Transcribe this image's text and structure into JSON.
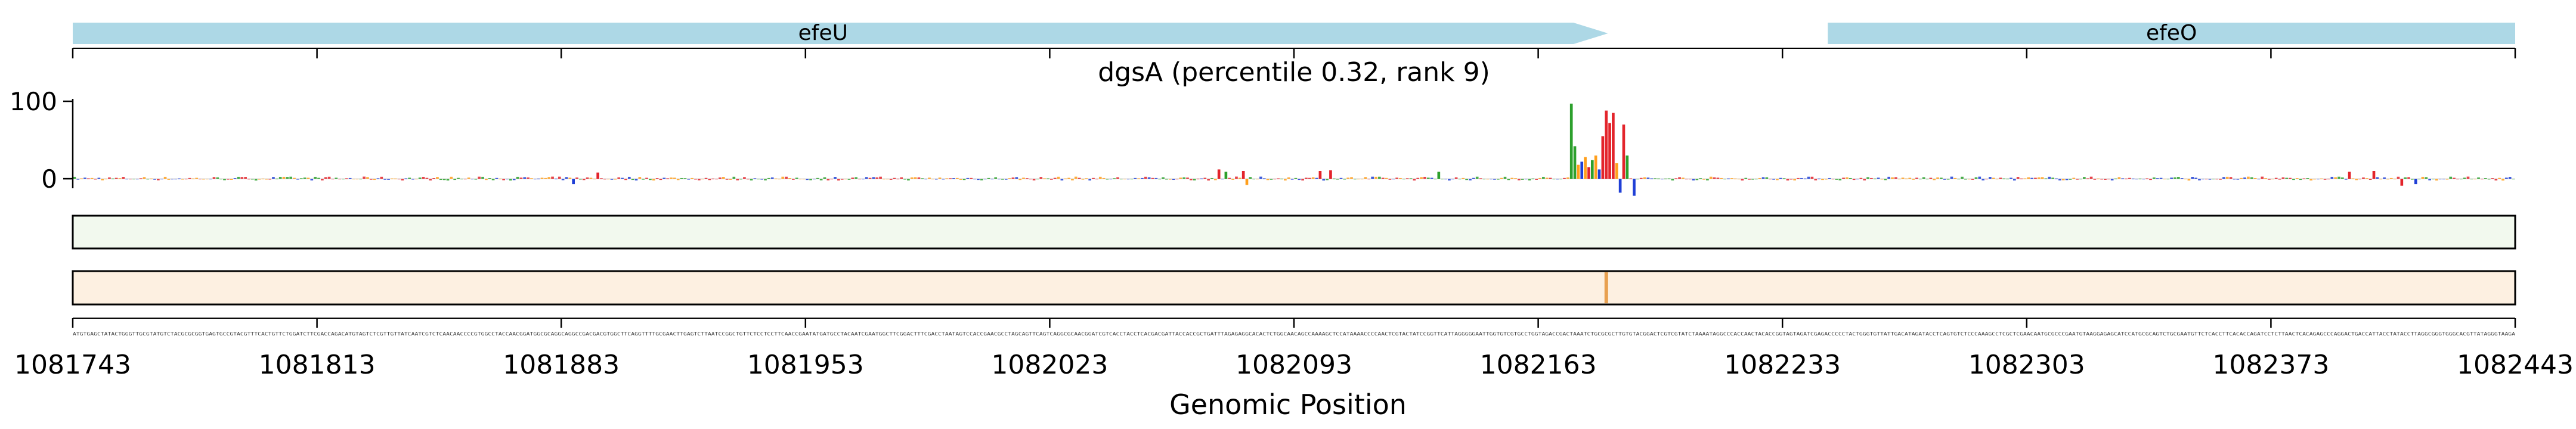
{
  "chart_data": {
    "type": "sequence-logo",
    "title": "dgsA (percentile 0.32, rank 9)",
    "xlabel": "Genomic Position",
    "ylabel": "",
    "xlim": [
      1081743,
      1082443
    ],
    "ylim": [
      -20,
      110
    ],
    "x_ticks": [
      1081743,
      1081813,
      1081883,
      1081953,
      1082023,
      1082093,
      1082163,
      1082233,
      1082303,
      1082373,
      1082443
    ],
    "y_ticks": [
      0,
      100
    ],
    "genes": [
      {
        "name": "efeU",
        "start": 1081743,
        "end": 1082183,
        "strand": "+"
      },
      {
        "name": "efeO",
        "start": 1082246,
        "end": 1082443,
        "strand": "+"
      }
    ],
    "base_colors": {
      "A": "#2ca02c",
      "C": "#1f3fd6",
      "G": "#ff9f1c",
      "T": "#e3242b"
    },
    "gene_color": "#add8e6",
    "track1_color": "#f2f9ee",
    "track2_color": "#fdf0e1",
    "track2_highlight_color": "#e8a050",
    "track2_highlight_position": 1082182,
    "logo_peaks": [
      {
        "pos": 1082172,
        "base": "A",
        "value": 97
      },
      {
        "pos": 1082173,
        "base": "A",
        "value": 42
      },
      {
        "pos": 1082174,
        "base": "G",
        "value": 18
      },
      {
        "pos": 1082175,
        "base": "C",
        "value": 22
      },
      {
        "pos": 1082176,
        "base": "G",
        "value": 28
      },
      {
        "pos": 1082177,
        "base": "T",
        "value": 15
      },
      {
        "pos": 1082178,
        "base": "A",
        "value": 24
      },
      {
        "pos": 1082179,
        "base": "G",
        "value": 30
      },
      {
        "pos": 1082180,
        "base": "C",
        "value": 12
      },
      {
        "pos": 1082181,
        "base": "T",
        "value": 55
      },
      {
        "pos": 1082182,
        "base": "T",
        "value": 88
      },
      {
        "pos": 1082183,
        "base": "T",
        "value": 72
      },
      {
        "pos": 1082184,
        "base": "T",
        "value": 85
      },
      {
        "pos": 1082185,
        "base": "G",
        "value": 20
      },
      {
        "pos": 1082186,
        "base": "C",
        "value": -18
      },
      {
        "pos": 1082187,
        "base": "T",
        "value": 70
      },
      {
        "pos": 1082188,
        "base": "A",
        "value": 30
      },
      {
        "pos": 1082190,
        "base": "C",
        "value": -22
      },
      {
        "pos": 1082071,
        "base": "T",
        "value": 12
      },
      {
        "pos": 1082073,
        "base": "A",
        "value": 9
      },
      {
        "pos": 1082078,
        "base": "T",
        "value": 10
      },
      {
        "pos": 1082079,
        "base": "G",
        "value": -8
      },
      {
        "pos": 1082100,
        "base": "T",
        "value": 10
      },
      {
        "pos": 1082103,
        "base": "T",
        "value": 11
      },
      {
        "pos": 1082134,
        "base": "A",
        "value": 9
      },
      {
        "pos": 1081886,
        "base": "C",
        "value": -7
      },
      {
        "pos": 1081893,
        "base": "T",
        "value": 8
      },
      {
        "pos": 1082395,
        "base": "T",
        "value": 9
      },
      {
        "pos": 1082402,
        "base": "T",
        "value": 10
      },
      {
        "pos": 1082410,
        "base": "T",
        "value": -9
      },
      {
        "pos": 1082414,
        "base": "C",
        "value": -7
      }
    ]
  }
}
